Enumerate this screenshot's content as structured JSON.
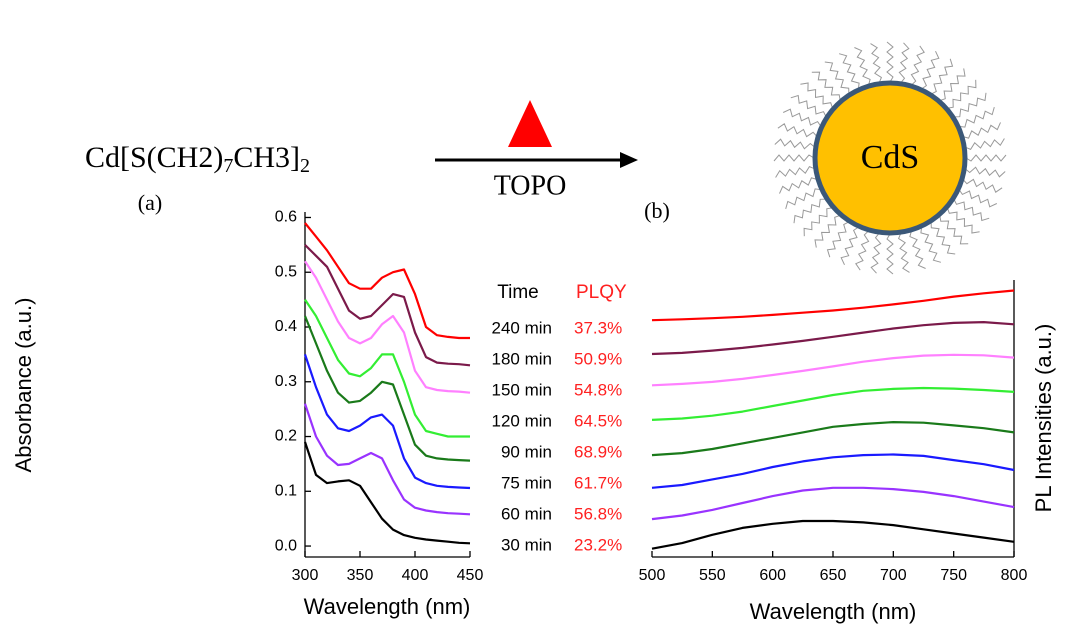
{
  "scheme": {
    "reactant": [
      "Cd[S(CH2)",
      "7",
      "CH3]",
      "2"
    ],
    "condition": "TOPO",
    "product": "CdS"
  },
  "chart_data": [
    {
      "type": "line",
      "panel": "(a)",
      "xlabel": "Wavelength (nm)",
      "ylabel": "Absorbance (a.u.)",
      "x": [
        300,
        310,
        320,
        330,
        340,
        350,
        360,
        370,
        380,
        390,
        400,
        410,
        420,
        430,
        440,
        450
      ],
      "xlim": [
        300,
        450
      ],
      "xticks": [
        300,
        350,
        400,
        450
      ],
      "ylim": [
        -0.02,
        0.61
      ],
      "yticks": [
        {
          "value": 0,
          "label": "0.0"
        },
        0.1,
        0.2,
        0.3,
        0.4,
        0.5,
        0.6
      ],
      "legend_title": "Time",
      "series": [
        {
          "name": "30 min",
          "color": "#000000",
          "values": [
            0.19,
            0.13,
            0.115,
            0.118,
            0.12,
            0.11,
            0.08,
            0.05,
            0.03,
            0.02,
            0.015,
            0.012,
            0.01,
            0.008,
            0.006,
            0.005
          ]
        },
        {
          "name": "60 min",
          "color": "#9933ff",
          "values": [
            0.26,
            0.2,
            0.165,
            0.148,
            0.15,
            0.16,
            0.17,
            0.16,
            0.12,
            0.085,
            0.07,
            0.065,
            0.062,
            0.06,
            0.059,
            0.058
          ]
        },
        {
          "name": "75 min",
          "color": "#1a1aff",
          "values": [
            0.35,
            0.29,
            0.24,
            0.215,
            0.21,
            0.22,
            0.235,
            0.24,
            0.22,
            0.16,
            0.125,
            0.115,
            0.11,
            0.108,
            0.107,
            0.106
          ]
        },
        {
          "name": "90 min",
          "color": "#1a7a1a",
          "values": [
            0.42,
            0.37,
            0.32,
            0.28,
            0.262,
            0.265,
            0.28,
            0.3,
            0.295,
            0.24,
            0.185,
            0.165,
            0.16,
            0.158,
            0.157,
            0.156
          ]
        },
        {
          "name": "120 min",
          "color": "#33ee33",
          "values": [
            0.45,
            0.42,
            0.38,
            0.34,
            0.315,
            0.31,
            0.325,
            0.35,
            0.35,
            0.3,
            0.24,
            0.21,
            0.205,
            0.2,
            0.2,
            0.2
          ]
        },
        {
          "name": "150 min",
          "color": "#ff80ff",
          "values": [
            0.52,
            0.49,
            0.45,
            0.41,
            0.38,
            0.37,
            0.38,
            0.405,
            0.42,
            0.39,
            0.32,
            0.29,
            0.285,
            0.283,
            0.282,
            0.28
          ]
        },
        {
          "name": "180 min",
          "color": "#7b1a4a",
          "values": [
            0.55,
            0.53,
            0.51,
            0.47,
            0.43,
            0.415,
            0.42,
            0.44,
            0.46,
            0.455,
            0.39,
            0.345,
            0.335,
            0.333,
            0.332,
            0.33
          ]
        },
        {
          "name": "240 min",
          "color": "#ff0000",
          "values": [
            0.59,
            0.565,
            0.54,
            0.51,
            0.48,
            0.47,
            0.47,
            0.49,
            0.5,
            0.505,
            0.46,
            0.4,
            0.385,
            0.382,
            0.38,
            0.38
          ]
        }
      ]
    },
    {
      "type": "line",
      "panel": "(b)",
      "xlabel": "Wavelength (nm)",
      "ylabel": "PL Intensities (a.u.)",
      "x": [
        500,
        525,
        550,
        575,
        600,
        625,
        650,
        675,
        700,
        725,
        750,
        775,
        800
      ],
      "xlim": [
        500,
        800
      ],
      "xticks": [
        500,
        550,
        600,
        650,
        700,
        750,
        800
      ],
      "ylim": [
        0,
        1
      ],
      "plqy": {
        "title": "PLQY",
        "values": [
          23.2,
          56.8,
          61.7,
          68.9,
          64.5,
          54.8,
          50.9,
          37.3
        ],
        "value_labels": [
          "23.2%",
          "56.8%",
          "61.7%",
          "68.9%",
          "64.5%",
          "54.8%",
          "50.9%",
          "37.3%"
        ],
        "color": "#ff2020"
      },
      "series": [
        {
          "color": "#000000",
          "values": [
            0.03,
            0.05,
            0.08,
            0.105,
            0.12,
            0.13,
            0.13,
            0.125,
            0.115,
            0.1,
            0.085,
            0.07,
            0.055
          ]
        },
        {
          "color": "#9933ff",
          "values": [
            0.137,
            0.15,
            0.17,
            0.195,
            0.22,
            0.24,
            0.25,
            0.25,
            0.245,
            0.235,
            0.22,
            0.2,
            0.18
          ]
        },
        {
          "color": "#1a1aff",
          "values": [
            0.25,
            0.26,
            0.28,
            0.3,
            0.325,
            0.345,
            0.36,
            0.368,
            0.37,
            0.365,
            0.35,
            0.335,
            0.314
          ]
        },
        {
          "color": "#1a7a1a",
          "values": [
            0.368,
            0.375,
            0.39,
            0.41,
            0.43,
            0.45,
            0.47,
            0.48,
            0.487,
            0.485,
            0.475,
            0.465,
            0.45
          ]
        },
        {
          "color": "#33ee33",
          "values": [
            0.495,
            0.5,
            0.51,
            0.525,
            0.545,
            0.565,
            0.585,
            0.6,
            0.607,
            0.61,
            0.608,
            0.603,
            0.596
          ]
        },
        {
          "color": "#ff80ff",
          "values": [
            0.62,
            0.625,
            0.632,
            0.643,
            0.657,
            0.672,
            0.688,
            0.705,
            0.718,
            0.727,
            0.73,
            0.728,
            0.72
          ]
        },
        {
          "color": "#7b1a4a",
          "values": [
            0.733,
            0.737,
            0.745,
            0.755,
            0.767,
            0.78,
            0.795,
            0.81,
            0.825,
            0.837,
            0.845,
            0.848,
            0.84
          ]
        },
        {
          "color": "#ff0000",
          "values": [
            0.855,
            0.858,
            0.862,
            0.867,
            0.874,
            0.882,
            0.89,
            0.9,
            0.912,
            0.925,
            0.94,
            0.952,
            0.962
          ]
        }
      ]
    }
  ]
}
